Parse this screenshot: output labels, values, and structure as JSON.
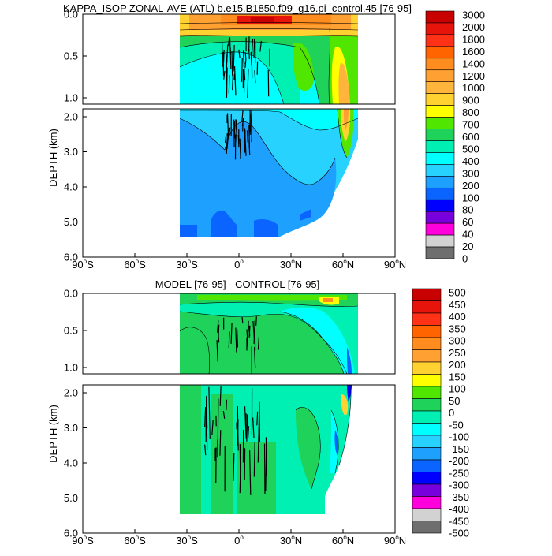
{
  "chart_data": [
    {
      "type": "heatmap",
      "title": "KAPPA_ISOP ZONAL-AVE (ATL) b.e15.B1850.f09_g16.pi_control.45 [76-95]",
      "ylabel": "DEPTH (km)",
      "upper_yticks": [
        "0.0",
        "0.5",
        "1.0"
      ],
      "lower_yticks": [
        "2.0",
        "3.0",
        "4.0",
        "5.0",
        "6.0"
      ],
      "xticks": [
        {
          "deg": "90",
          "hemi": "S"
        },
        {
          "deg": "60",
          "hemi": "S"
        },
        {
          "deg": "30",
          "hemi": "S"
        },
        {
          "deg": "0",
          "hemi": ""
        },
        {
          "deg": "30",
          "hemi": "N"
        },
        {
          "deg": "60",
          "hemi": "N"
        },
        {
          "deg": "90",
          "hemi": "N"
        }
      ],
      "colorbar": {
        "labels": [
          "3000",
          "2000",
          "1800",
          "1600",
          "1400",
          "1200",
          "1000",
          "900",
          "800",
          "700",
          "600",
          "500",
          "400",
          "300",
          "200",
          "100",
          "80",
          "60",
          "40",
          "20",
          "0"
        ],
        "colors": [
          "#c80000",
          "#e6140a",
          "#ff3218",
          "#ff6400",
          "#ff8c1e",
          "#ffa032",
          "#ffb43c",
          "#ffd232",
          "#ffff00",
          "#50e600",
          "#1ed25a",
          "#00f0b4",
          "#00ffff",
          "#28d2ff",
          "#1ea0ff",
          "#0a64ff",
          "#0000ff",
          "#7800dc",
          "#ff00dc",
          "#d2d2d2",
          "#6e6e6e"
        ]
      }
    },
    {
      "type": "heatmap",
      "title": "MODEL [76-95] - CONTROL [76-95]",
      "ylabel": "DEPTH (km)",
      "upper_yticks": [
        "0.0",
        "0.5",
        "1.0"
      ],
      "lower_yticks": [
        "2.0",
        "3.0",
        "4.0",
        "5.0",
        "6.0"
      ],
      "xticks": [
        {
          "deg": "90",
          "hemi": "S"
        },
        {
          "deg": "60",
          "hemi": "S"
        },
        {
          "deg": "30",
          "hemi": "S"
        },
        {
          "deg": "0",
          "hemi": ""
        },
        {
          "deg": "30",
          "hemi": "N"
        },
        {
          "deg": "60",
          "hemi": "N"
        },
        {
          "deg": "90",
          "hemi": "N"
        }
      ],
      "colorbar": {
        "labels": [
          "500",
          "450",
          "400",
          "350",
          "300",
          "250",
          "200",
          "150",
          "100",
          "50",
          "0",
          "-50",
          "-100",
          "-150",
          "-200",
          "-250",
          "-300",
          "-350",
          "-400",
          "-450",
          "-500"
        ],
        "colors": [
          "#c80000",
          "#e6140a",
          "#ff3218",
          "#ff6400",
          "#ff8c1e",
          "#ffa032",
          "#ffd232",
          "#ffff00",
          "#50e600",
          "#1ed25a",
          "#00f0b4",
          "#00ffff",
          "#28d2ff",
          "#1ea0ff",
          "#0a64ff",
          "#0000ff",
          "#7800dc",
          "#ff00dc",
          "#d2d2d2",
          "#6e6e6e"
        ]
      }
    }
  ]
}
